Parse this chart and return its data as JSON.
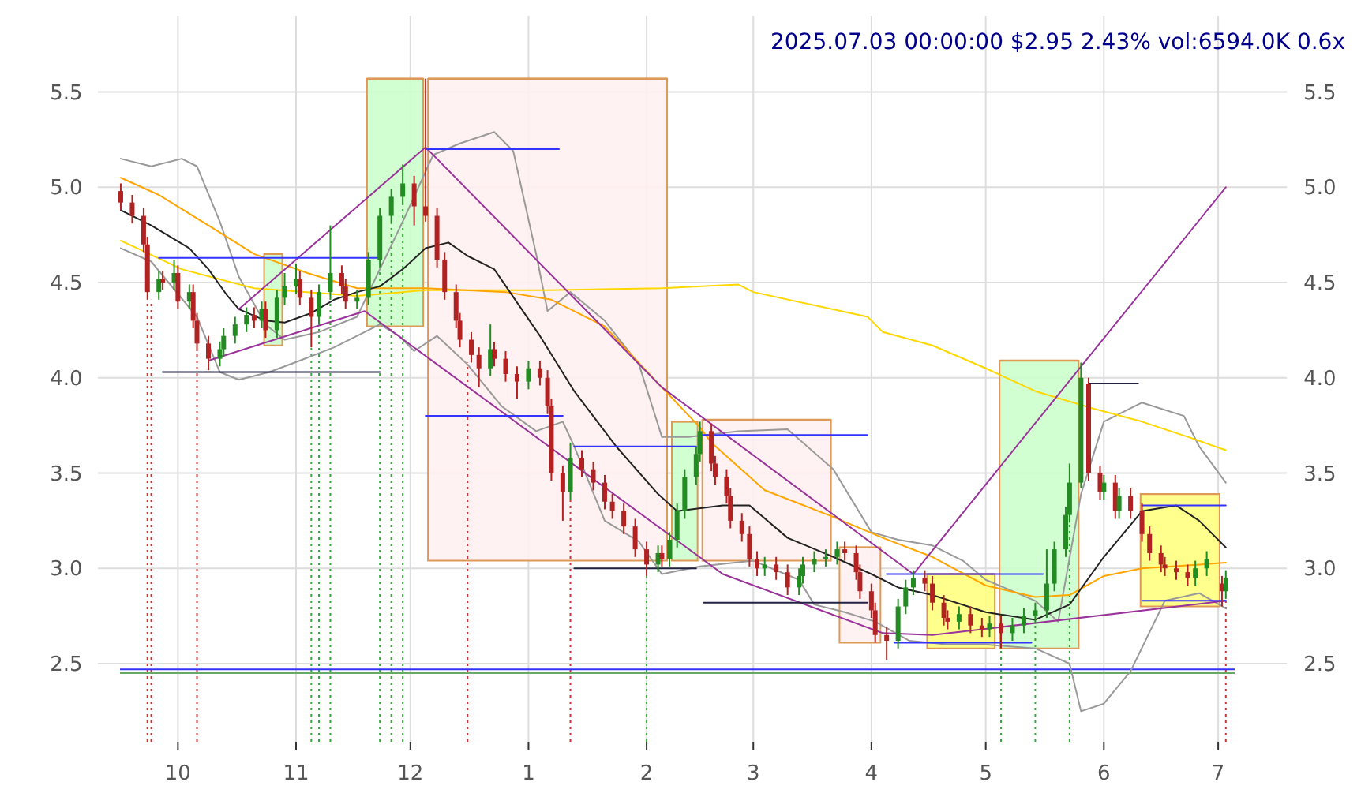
{
  "chart_data": {
    "type": "candlestick",
    "title": "2025.07.03 00:00:00 $2.95 2.43% vol:6594.0K 0.6x",
    "x": [
      "2024-09-16",
      "2024-09-19",
      "2024-09-22",
      "2024-09-23",
      "2024-09-26",
      "2024-09-27",
      "2024-09-30",
      "2024-10-01",
      "2024-10-04",
      "2024-10-05",
      "2024-10-06",
      "2024-10-09",
      "2024-10-12",
      "2024-10-13",
      "2024-10-16",
      "2024-10-19",
      "2024-10-21",
      "2024-10-23",
      "2024-10-24",
      "2024-10-27",
      "2024-10-29",
      "2024-11-01",
      "2024-11-02",
      "2024-11-05",
      "2024-11-07",
      "2024-11-10",
      "2024-11-13",
      "2024-11-14",
      "2024-11-17",
      "2024-11-20",
      "2024-11-23",
      "2024-11-26",
      "2024-11-29",
      "2024-12-02",
      "2024-12-05",
      "2024-12-08",
      "2024-12-10",
      "2024-12-13",
      "2024-12-14",
      "2024-12-17",
      "2024-12-19",
      "2024-12-22",
      "2024-12-23",
      "2024-12-26",
      "2024-12-29",
      "2025-01-01",
      "2025-01-04",
      "2025-01-06",
      "2025-01-07",
      "2025-01-10",
      "2025-01-12",
      "2025-01-15",
      "2025-01-18",
      "2025-01-21",
      "2025-01-23",
      "2025-01-26",
      "2025-01-29",
      "2025-02-01",
      "2025-02-04",
      "2025-02-05",
      "2025-02-07",
      "2025-02-09",
      "2025-02-11",
      "2025-02-14",
      "2025-02-15",
      "2025-02-18",
      "2025-02-19",
      "2025-02-22",
      "2025-02-23",
      "2025-02-26",
      "2025-02-28",
      "2025-03-02",
      "2025-03-04",
      "2025-03-07",
      "2025-03-10",
      "2025-03-13",
      "2025-03-14",
      "2025-03-17",
      "2025-03-20",
      "2025-03-23",
      "2025-03-25",
      "2025-03-28",
      "2025-03-29",
      "2025-04-01",
      "2025-04-02",
      "2025-04-05",
      "2025-04-08",
      "2025-04-10",
      "2025-04-12",
      "2025-04-15",
      "2025-04-17",
      "2025-04-20",
      "2025-04-21",
      "2025-04-24",
      "2025-04-27",
      "2025-04-30",
      "2025-05-02",
      "2025-05-05",
      "2025-05-08",
      "2025-05-11",
      "2025-05-14",
      "2025-05-17",
      "2025-05-19",
      "2025-05-22",
      "2025-05-23",
      "2025-05-26",
      "2025-05-28",
      "2025-05-31",
      "2025-06-01",
      "2025-06-04",
      "2025-06-05",
      "2025-06-08",
      "2025-06-11",
      "2025-06-13",
      "2025-06-16",
      "2025-06-17",
      "2025-06-20",
      "2025-06-23",
      "2025-06-25",
      "2025-06-28",
      "2025-07-02",
      "2025-07-03"
    ],
    "ohlc": [
      [
        4.98,
        5.02,
        4.88,
        4.92
      ],
      [
        4.92,
        4.96,
        4.81,
        4.85
      ],
      [
        4.85,
        4.89,
        4.66,
        4.7
      ],
      [
        4.7,
        4.74,
        4.41,
        4.45
      ],
      [
        4.45,
        4.56,
        4.41,
        4.52
      ],
      [
        4.52,
        4.56,
        4.46,
        4.5
      ],
      [
        4.5,
        4.62,
        4.46,
        4.55
      ],
      [
        4.55,
        4.59,
        4.36,
        4.4
      ],
      [
        4.4,
        4.49,
        4.36,
        4.45
      ],
      [
        4.45,
        4.49,
        4.26,
        4.3
      ],
      [
        4.3,
        4.34,
        4.14,
        4.18
      ],
      [
        4.18,
        4.22,
        4.04,
        4.1
      ],
      [
        4.1,
        4.19,
        4.06,
        4.15
      ],
      [
        4.15,
        4.26,
        4.11,
        4.22
      ],
      [
        4.22,
        4.32,
        4.18,
        4.28
      ],
      [
        4.28,
        4.37,
        4.24,
        4.33
      ],
      [
        4.33,
        4.37,
        4.26,
        4.3
      ],
      [
        4.3,
        4.4,
        4.26,
        4.36
      ],
      [
        4.36,
        4.4,
        4.21,
        4.25
      ],
      [
        4.25,
        4.46,
        4.21,
        4.42
      ],
      [
        4.42,
        4.55,
        4.38,
        4.48
      ],
      [
        4.48,
        4.6,
        4.44,
        4.52
      ],
      [
        4.52,
        4.56,
        4.38,
        4.42
      ],
      [
        4.42,
        4.46,
        4.16,
        4.32
      ],
      [
        4.32,
        4.49,
        4.28,
        4.45
      ],
      [
        4.45,
        4.8,
        4.41,
        4.55
      ],
      [
        4.55,
        4.59,
        4.44,
        4.48
      ],
      [
        4.48,
        4.52,
        4.36,
        4.4
      ],
      [
        4.4,
        4.46,
        4.36,
        4.42
      ],
      [
        4.42,
        4.66,
        4.38,
        4.62
      ],
      [
        4.62,
        4.89,
        4.58,
        4.85
      ],
      [
        4.85,
        4.99,
        4.81,
        4.95
      ],
      [
        4.95,
        5.12,
        4.91,
        5.02
      ],
      [
        5.02,
        5.06,
        4.8,
        4.9
      ],
      [
        4.9,
        5.57,
        4.82,
        4.85
      ],
      [
        4.85,
        4.89,
        4.58,
        4.62
      ],
      [
        4.62,
        4.66,
        4.41,
        4.45
      ],
      [
        4.45,
        4.49,
        4.26,
        4.3
      ],
      [
        4.3,
        4.34,
        4.16,
        4.2
      ],
      [
        4.2,
        4.24,
        4.08,
        4.12
      ],
      [
        4.12,
        4.16,
        3.95,
        4.05
      ],
      [
        4.05,
        4.28,
        4.01,
        4.15
      ],
      [
        4.15,
        4.19,
        4.06,
        4.1
      ],
      [
        4.1,
        4.14,
        3.98,
        4.02
      ],
      [
        4.02,
        4.06,
        3.89,
        3.98
      ],
      [
        3.98,
        4.09,
        3.94,
        4.05
      ],
      [
        4.05,
        4.09,
        3.96,
        4.0
      ],
      [
        4.0,
        4.04,
        3.81,
        3.85
      ],
      [
        3.85,
        3.89,
        3.46,
        3.5
      ],
      [
        3.5,
        3.54,
        3.25,
        3.4
      ],
      [
        3.4,
        3.66,
        3.36,
        3.58
      ],
      [
        3.58,
        3.62,
        3.48,
        3.52
      ],
      [
        3.52,
        3.56,
        3.41,
        3.45
      ],
      [
        3.45,
        3.49,
        3.31,
        3.35
      ],
      [
        3.35,
        3.39,
        3.26,
        3.3
      ],
      [
        3.3,
        3.34,
        3.18,
        3.22
      ],
      [
        3.22,
        3.26,
        3.06,
        3.1
      ],
      [
        3.1,
        3.14,
        2.96,
        3.02
      ],
      [
        3.02,
        3.12,
        2.98,
        3.08
      ],
      [
        3.08,
        3.12,
        3.01,
        3.05
      ],
      [
        3.05,
        3.19,
        3.01,
        3.15
      ],
      [
        3.15,
        3.34,
        3.11,
        3.3
      ],
      [
        3.3,
        3.52,
        3.26,
        3.48
      ],
      [
        3.48,
        3.64,
        3.44,
        3.6
      ],
      [
        3.6,
        3.77,
        3.56,
        3.72
      ],
      [
        3.72,
        3.76,
        3.51,
        3.55
      ],
      [
        3.55,
        3.59,
        3.44,
        3.48
      ],
      [
        3.48,
        3.52,
        3.34,
        3.38
      ],
      [
        3.38,
        3.42,
        3.21,
        3.25
      ],
      [
        3.25,
        3.29,
        3.14,
        3.18
      ],
      [
        3.18,
        3.22,
        3.01,
        3.05
      ],
      [
        3.05,
        3.09,
        2.96,
        3.0
      ],
      [
        3.0,
        3.06,
        2.96,
        3.02
      ],
      [
        3.02,
        3.06,
        2.94,
        2.98
      ],
      [
        2.98,
        3.02,
        2.86,
        2.9
      ],
      [
        2.9,
        3.0,
        2.86,
        2.96
      ],
      [
        2.96,
        3.06,
        2.92,
        3.02
      ],
      [
        3.02,
        3.09,
        2.98,
        3.05
      ],
      [
        3.05,
        3.1,
        3.01,
        3.06
      ],
      [
        3.06,
        3.14,
        3.02,
        3.1
      ],
      [
        3.1,
        3.14,
        3.04,
        3.08
      ],
      [
        3.08,
        3.12,
        2.94,
        2.98
      ],
      [
        2.98,
        3.02,
        2.84,
        2.88
      ],
      [
        2.88,
        2.92,
        2.74,
        2.78
      ],
      [
        2.78,
        2.82,
        2.61,
        2.65
      ],
      [
        2.65,
        2.69,
        2.52,
        2.62
      ],
      [
        2.62,
        2.84,
        2.58,
        2.8
      ],
      [
        2.8,
        2.94,
        2.76,
        2.9
      ],
      [
        2.9,
        2.99,
        2.86,
        2.95
      ],
      [
        2.95,
        2.99,
        2.88,
        2.92
      ],
      [
        2.92,
        2.96,
        2.78,
        2.82
      ],
      [
        2.82,
        2.86,
        2.7,
        2.74
      ],
      [
        2.74,
        2.78,
        2.68,
        2.72
      ],
      [
        2.72,
        2.8,
        2.68,
        2.76
      ],
      [
        2.76,
        2.8,
        2.66,
        2.7
      ],
      [
        2.7,
        2.74,
        2.64,
        2.68
      ],
      [
        2.68,
        2.75,
        2.64,
        2.71
      ],
      [
        2.71,
        2.75,
        2.58,
        2.66
      ],
      [
        2.66,
        2.74,
        2.62,
        2.7
      ],
      [
        2.7,
        2.79,
        2.66,
        2.75
      ],
      [
        2.75,
        2.82,
        2.71,
        2.78
      ],
      [
        2.78,
        3.1,
        2.74,
        2.92
      ],
      [
        2.92,
        3.14,
        2.88,
        3.1
      ],
      [
        3.1,
        3.32,
        3.06,
        3.28
      ],
      [
        3.28,
        3.55,
        3.24,
        3.45
      ],
      [
        3.45,
        4.08,
        3.42,
        4.0
      ],
      [
        3.97,
        4.0,
        3.46,
        3.5
      ],
      [
        3.5,
        3.54,
        3.36,
        3.4
      ],
      [
        3.4,
        3.49,
        3.36,
        3.45
      ],
      [
        3.45,
        3.49,
        3.26,
        3.3
      ],
      [
        3.3,
        3.42,
        3.26,
        3.38
      ],
      [
        3.38,
        3.42,
        3.26,
        3.3
      ],
      [
        3.3,
        3.34,
        3.14,
        3.18
      ],
      [
        3.18,
        3.22,
        3.04,
        3.08
      ],
      [
        3.08,
        3.12,
        2.98,
        3.02
      ],
      [
        3.02,
        3.06,
        2.96,
        3.0
      ],
      [
        3.0,
        3.04,
        2.94,
        2.98
      ],
      [
        2.98,
        3.02,
        2.91,
        2.95
      ],
      [
        2.95,
        3.04,
        2.91,
        3.0
      ],
      [
        3.0,
        3.09,
        2.96,
        3.05
      ],
      [
        2.92,
        2.96,
        2.8,
        2.88
      ],
      [
        2.88,
        2.99,
        2.84,
        2.95
      ]
    ],
    "xlim": [
      "2024-09-10",
      "2025-07-19"
    ],
    "xticks": [
      {
        "value": "2024-10-01",
        "label": "10"
      },
      {
        "value": "2024-11-01",
        "label": "11"
      },
      {
        "value": "2024-12-01",
        "label": "12"
      },
      {
        "value": "2025-01-01",
        "label": "1"
      },
      {
        "value": "2025-02-01",
        "label": "2"
      },
      {
        "value": "2025-03-01",
        "label": "3"
      },
      {
        "value": "2025-04-01",
        "label": "4"
      },
      {
        "value": "2025-05-01",
        "label": "5"
      },
      {
        "value": "2025-06-01",
        "label": "6"
      },
      {
        "value": "2025-07-01",
        "label": "7"
      }
    ],
    "ylim": [
      2.09,
      5.9
    ],
    "yticks": [
      2.5,
      {
        "value": 3,
        "label": "3.0"
      },
      3.5,
      {
        "value": 4,
        "label": "4.0"
      },
      4.5,
      {
        "value": 5,
        "label": "5.0"
      },
      5.5
    ],
    "y2lim": [
      2.09,
      5.9
    ],
    "y2ticks": [
      2.5,
      {
        "value": 3,
        "label": "3.0"
      },
      3.5,
      {
        "value": 4,
        "label": "4.0"
      },
      4.5,
      {
        "value": 5,
        "label": "5.0"
      },
      5.5
    ],
    "grid": true,
    "series": [
      {
        "type": "line",
        "color": "#dd9955",
        "colors": [
          "#ccffcc",
          "#ccffcc"
        ],
        "x": [
          "2024-10-23",
          "2024-10-29"
        ],
        "values": [
          4.65,
          4.65
        ],
        "lower": [
          4.17,
          4.17
        ],
        "upper": [
          4.65,
          4.65
        ]
      },
      {
        "type": "line",
        "color": "#dd9955",
        "colors": [
          "#ccffcc",
          "#ccffcc"
        ],
        "x": [
          "2024-11-19",
          "2024-12-05"
        ],
        "values": [
          5.57,
          5.57
        ],
        "lower": [
          4.27,
          4.27
        ],
        "upper": [
          5.57,
          5.57
        ]
      },
      {
        "type": "line",
        "color": "#dd9955",
        "colors": [
          "#fff0f0",
          "#fff0f0"
        ],
        "x": [
          "2024-12-05",
          "2025-02-07"
        ],
        "values": [
          5.57,
          5.57
        ],
        "lower": [
          3.04,
          3.04
        ],
        "upper": [
          5.57,
          5.57
        ]
      },
      {
        "type": "line",
        "color": "#dd9955",
        "colors": [
          "#ccffcc",
          "#ccffcc"
        ],
        "x": [
          "2025-02-07",
          "2025-02-15"
        ],
        "values": [
          3.77,
          3.77
        ],
        "lower": [
          3.04,
          3.04
        ],
        "upper": [
          3.77,
          3.77
        ]
      },
      {
        "type": "line",
        "color": "#dd9955",
        "colors": [
          "#fff0f0",
          "#fff0f0"
        ],
        "x": [
          "2025-02-15",
          "2025-03-22"
        ],
        "values": [
          3.78,
          3.78
        ],
        "lower": [
          3.04,
          3.04
        ],
        "upper": [
          3.78,
          3.78
        ]
      },
      {
        "type": "line",
        "color": "#dd9955",
        "colors": [
          "#fff0f0",
          "#fff0f0"
        ],
        "x": [
          "2025-03-23",
          "2025-04-04"
        ],
        "values": [
          3.11,
          3.11
        ],
        "lower": [
          2.61,
          2.61
        ],
        "upper": [
          3.11,
          3.11
        ]
      },
      {
        "type": "line",
        "color": "#dd9955",
        "colors": [
          "#ffff80",
          "#ffff80"
        ],
        "x": [
          "2025-04-15",
          "2025-05-04"
        ],
        "values": [
          2.97,
          2.97
        ],
        "lower": [
          2.58,
          2.58
        ],
        "upper": [
          2.97,
          2.97
        ]
      },
      {
        "type": "line",
        "color": "#dd9955",
        "colors": [
          "#ccffcc",
          "#ccffcc"
        ],
        "x": [
          "2025-05-04",
          "2025-05-26"
        ],
        "values": [
          4.09,
          4.09
        ],
        "lower": [
          2.58,
          2.58
        ],
        "upper": [
          4.09,
          4.09
        ]
      },
      {
        "type": "line",
        "color": "#dd9955",
        "colors": [
          "#ffff80",
          "#ffff80"
        ],
        "x": [
          "2025-06-10",
          "2025-07-02"
        ],
        "values": [
          3.39,
          3.39
        ],
        "lower": [
          2.8,
          2.8
        ],
        "upper": [
          3.39,
          3.39
        ]
      },
      {
        "type": "line",
        "color": "#999999",
        "x": [
          "2024-09-16",
          "2024-09-24",
          "2024-10-02",
          "2024-10-06",
          "2024-10-12",
          "2024-10-17",
          "2024-10-24",
          "2024-10-29",
          "2024-11-07",
          "2024-11-17",
          "2024-11-23",
          "2024-11-29",
          "2024-12-07",
          "2024-12-14",
          "2024-12-23",
          "2024-12-28",
          "2025-01-03",
          "2025-01-06",
          "2025-01-12",
          "2025-01-21",
          "2025-01-30",
          "2025-02-05",
          "2025-02-12",
          "2025-02-25",
          "2025-03-10",
          "2025-03-22",
          "2025-04-01",
          "2025-04-08",
          "2025-04-17",
          "2025-04-25",
          "2025-05-01",
          "2025-05-14",
          "2025-05-20",
          "2025-05-26",
          "2025-06-01",
          "2025-06-11",
          "2025-06-22",
          "2025-06-26",
          "2025-07-03"
        ],
        "values": [
          5.15,
          5.11,
          5.15,
          5.11,
          4.82,
          4.53,
          4.28,
          4.2,
          4.24,
          4.32,
          4.57,
          4.82,
          5.17,
          5.23,
          5.29,
          5.19,
          4.65,
          4.35,
          4.45,
          4.3,
          4.07,
          3.69,
          3.69,
          3.72,
          3.73,
          3.52,
          3.19,
          3.15,
          3.12,
          3.04,
          2.94,
          2.83,
          2.72,
          3.39,
          3.77,
          3.87,
          3.8,
          3.64,
          3.45
        ]
      },
      {
        "type": "line",
        "color": "#999999",
        "x": [
          "2024-09-16",
          "2024-09-24",
          "2024-10-06",
          "2024-10-12",
          "2024-10-17",
          "2024-10-25",
          "2024-11-02",
          "2024-11-11",
          "2024-11-23",
          "2024-11-28",
          "2024-12-02",
          "2024-12-08",
          "2024-12-16",
          "2024-12-25",
          "2025-01-03",
          "2025-01-10",
          "2025-01-13",
          "2025-01-21",
          "2025-01-30",
          "2025-02-05",
          "2025-02-15",
          "2025-03-01",
          "2025-03-13",
          "2025-03-17",
          "2025-03-25",
          "2025-04-02",
          "2025-04-11",
          "2025-04-21",
          "2025-05-01",
          "2025-05-14",
          "2025-05-23",
          "2025-05-26",
          "2025-06-01",
          "2025-06-08",
          "2025-06-17",
          "2025-06-26",
          "2025-07-03"
        ],
        "values": [
          4.68,
          4.61,
          4.32,
          4.03,
          3.99,
          4.03,
          4.09,
          4.16,
          4.28,
          4.22,
          4.14,
          4.22,
          4.07,
          3.85,
          3.72,
          3.77,
          3.64,
          3.25,
          3.14,
          2.97,
          3.01,
          3.04,
          2.94,
          2.81,
          2.77,
          2.72,
          2.62,
          2.6,
          2.6,
          2.58,
          2.5,
          2.25,
          2.29,
          2.46,
          2.83,
          2.87,
          2.79
        ]
      },
      {
        "type": "line",
        "color": "#ffd700",
        "x": [
          "2024-09-16",
          "2024-10-02",
          "2024-10-21",
          "2024-11-17",
          "2024-12-05",
          "2025-01-06",
          "2025-02-05",
          "2025-02-25",
          "2025-03-01",
          "2025-03-31",
          "2025-04-04",
          "2025-04-17",
          "2025-05-01",
          "2025-05-14",
          "2025-05-29",
          "2025-06-11",
          "2025-06-23",
          "2025-07-03"
        ],
        "values": [
          4.72,
          4.57,
          4.47,
          4.43,
          4.46,
          4.46,
          4.47,
          4.49,
          4.45,
          4.32,
          4.24,
          4.17,
          4.05,
          3.93,
          3.84,
          3.77,
          3.69,
          3.62
        ]
      },
      {
        "type": "line",
        "color": "#ffa500",
        "x": [
          "2024-09-16",
          "2024-09-26",
          "2024-10-09",
          "2024-10-21",
          "2024-11-04",
          "2024-11-17",
          "2024-12-05",
          "2024-12-26",
          "2025-01-07",
          "2025-01-21",
          "2025-02-05",
          "2025-02-15",
          "2025-02-18",
          "2025-03-04",
          "2025-03-22",
          "2025-04-04",
          "2025-04-17",
          "2025-05-01",
          "2025-05-14",
          "2025-05-23",
          "2025-06-01",
          "2025-06-11",
          "2025-06-26",
          "2025-07-03"
        ],
        "values": [
          5.05,
          4.96,
          4.8,
          4.65,
          4.55,
          4.47,
          4.47,
          4.45,
          4.41,
          4.27,
          3.95,
          3.74,
          3.66,
          3.41,
          3.27,
          3.16,
          3.06,
          2.91,
          2.85,
          2.86,
          2.96,
          3.0,
          3.02,
          3.03
        ]
      },
      {
        "type": "line",
        "color": "#222222",
        "x": [
          "2024-09-16",
          "2024-09-24",
          "2024-10-04",
          "2024-10-09",
          "2024-10-14",
          "2024-10-17",
          "2024-10-24",
          "2024-10-29",
          "2024-11-05",
          "2024-11-11",
          "2024-11-17",
          "2024-11-23",
          "2024-11-29",
          "2024-12-05",
          "2024-12-11",
          "2024-12-16",
          "2024-12-23",
          "2025-01-04",
          "2025-01-13",
          "2025-01-24",
          "2025-02-04",
          "2025-02-09",
          "2025-02-21",
          "2025-02-28",
          "2025-03-10",
          "2025-03-22",
          "2025-04-01",
          "2025-04-08",
          "2025-04-17",
          "2025-05-01",
          "2025-05-14",
          "2025-05-23",
          "2025-06-01",
          "2025-06-11",
          "2025-06-20",
          "2025-06-26",
          "2025-07-03"
        ],
        "values": [
          4.88,
          4.8,
          4.68,
          4.57,
          4.43,
          4.36,
          4.3,
          4.29,
          4.34,
          4.41,
          4.45,
          4.48,
          4.57,
          4.68,
          4.71,
          4.64,
          4.57,
          4.22,
          3.93,
          3.64,
          3.39,
          3.3,
          3.33,
          3.33,
          3.16,
          3.06,
          2.97,
          2.9,
          2.86,
          2.77,
          2.73,
          2.81,
          3.06,
          3.3,
          3.33,
          3.25,
          3.11
        ]
      },
      {
        "type": "line",
        "color": "#993399",
        "x": [
          "2024-10-17",
          "2024-12-05",
          "2025-02-05",
          "2025-04-12",
          "2025-07-03"
        ],
        "values": [
          4.36,
          5.21,
          3.95,
          2.97,
          5.0
        ]
      },
      {
        "type": "line",
        "color": "#993399",
        "x": [
          "2024-10-09",
          "2024-11-19",
          "2025-02-21",
          "2025-04-04",
          "2025-04-17",
          "2025-07-03"
        ],
        "values": [
          4.09,
          4.35,
          2.97,
          2.66,
          2.65,
          2.83
        ]
      },
      {
        "type": "line",
        "color": "#3333ff",
        "x": [
          "2024-09-26",
          "2024-11-23"
        ],
        "values": [
          4.63,
          4.63
        ]
      },
      {
        "type": "line",
        "color": "#3333ff",
        "x": [
          "2024-12-05",
          "2025-01-09"
        ],
        "values": [
          5.2,
          5.2
        ]
      },
      {
        "type": "line",
        "color": "#3333ff",
        "x": [
          "2024-12-05",
          "2025-01-10"
        ],
        "values": [
          3.8,
          3.8
        ]
      },
      {
        "type": "line",
        "color": "#3333ff",
        "x": [
          "2025-01-13",
          "2025-02-14"
        ],
        "values": [
          3.64,
          3.64
        ]
      },
      {
        "type": "line",
        "color": "#3333ff",
        "x": [
          "2025-02-15",
          "2025-03-31"
        ],
        "values": [
          3.7,
          3.7
        ]
      },
      {
        "type": "line",
        "color": "#3333ff",
        "x": [
          "2025-04-05",
          "2025-05-16"
        ],
        "values": [
          2.97,
          2.97
        ]
      },
      {
        "type": "line",
        "color": "#3333ff",
        "x": [
          "2025-04-07",
          "2025-05-13"
        ],
        "values": [
          2.61,
          2.61
        ]
      },
      {
        "type": "line",
        "color": "#3333ff",
        "x": [
          "2025-06-11",
          "2025-07-03"
        ],
        "values": [
          3.33,
          3.33
        ]
      },
      {
        "type": "line",
        "color": "#3333ff",
        "x": [
          "2025-06-11",
          "2025-07-03"
        ],
        "values": [
          2.83,
          2.83
        ]
      },
      {
        "type": "line",
        "color": "#222244",
        "x": [
          "2024-09-27",
          "2024-11-23"
        ],
        "values": [
          4.03,
          4.03
        ]
      },
      {
        "type": "line",
        "color": "#222244",
        "x": [
          "2025-01-13",
          "2025-02-14"
        ],
        "values": [
          3.0,
          3.0
        ]
      },
      {
        "type": "line",
        "color": "#222244",
        "x": [
          "2025-02-16",
          "2025-03-31"
        ],
        "values": [
          2.82,
          2.82
        ]
      },
      {
        "type": "line",
        "color": "#222244",
        "x": [
          "2025-05-28",
          "2025-06-10"
        ],
        "values": [
          3.97,
          3.97
        ]
      }
    ],
    "ref_lines": [
      {
        "axis": "x",
        "value": "2024-09-23",
        "color": "#cc3333",
        "line_style": "dotted"
      },
      {
        "axis": "x",
        "value": "2024-09-24",
        "color": "#cc3333",
        "line_style": "dotted"
      },
      {
        "axis": "x",
        "value": "2024-10-06",
        "color": "#cc3333",
        "line_style": "dotted"
      },
      {
        "axis": "x",
        "value": "2024-11-05",
        "color": "#33aa33",
        "line_style": "dotted"
      },
      {
        "axis": "x",
        "value": "2024-11-07",
        "color": "#33aa33",
        "line_style": "dotted"
      },
      {
        "axis": "x",
        "value": "2024-11-10",
        "color": "#33aa33",
        "line_style": "dotted"
      },
      {
        "axis": "x",
        "value": "2024-11-23",
        "color": "#33aa33",
        "line_style": "dotted"
      },
      {
        "axis": "x",
        "value": "2024-11-26",
        "color": "#33aa33",
        "line_style": "dotted"
      },
      {
        "axis": "x",
        "value": "2024-11-29",
        "color": "#33aa33",
        "line_style": "dotted"
      },
      {
        "axis": "x",
        "value": "2024-12-16",
        "color": "#cc3333",
        "line_style": "dotted"
      },
      {
        "axis": "x",
        "value": "2025-01-12",
        "color": "#cc3333",
        "line_style": "dotted"
      },
      {
        "axis": "x",
        "value": "2025-02-01",
        "color": "#33aa33",
        "line_style": "dotted"
      },
      {
        "axis": "x",
        "value": "2025-05-05",
        "color": "#33aa33",
        "line_style": "dotted"
      },
      {
        "axis": "x",
        "value": "2025-05-14",
        "color": "#33aa33",
        "line_style": "dotted"
      },
      {
        "axis": "x",
        "value": "2025-05-23",
        "color": "#33aa33",
        "line_style": "dotted"
      },
      {
        "axis": "x",
        "value": "2025-07-03",
        "color": "#cc3333",
        "line_style": "dotted"
      },
      {
        "axis": "y",
        "value": 2.47,
        "color": "#3333ff",
        "line_style": "solid"
      },
      {
        "axis": "y",
        "value": 2.45,
        "color": "#66aa66",
        "line_style": "solid"
      }
    ]
  }
}
